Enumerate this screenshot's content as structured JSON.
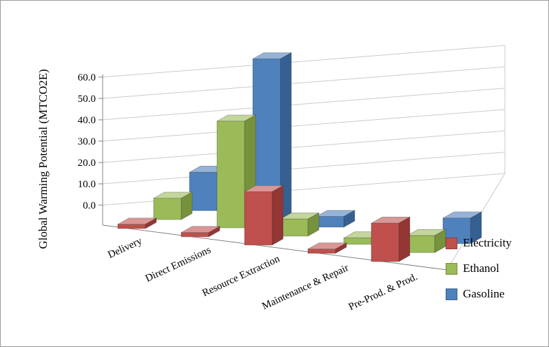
{
  "chart_data": {
    "type": "bar",
    "subtype": "3d-column",
    "title": "",
    "ylabel": "Global Warming Potential (MTCO2E)",
    "xlabel": "",
    "categories": [
      "Delivery",
      "Direct Emissions",
      "Resource Extraction",
      "Maintenance & Repair",
      "Pre-Prod. & Prod."
    ],
    "series": [
      {
        "name": "Electricity",
        "color": "#C0504D",
        "color_top": "#D99694",
        "color_side": "#943634",
        "values": [
          2,
          2,
          25,
          2,
          18
        ]
      },
      {
        "name": "Ethanol",
        "color": "#9BBB59",
        "color_top": "#C3D69B",
        "color_side": "#76923C",
        "values": [
          10,
          50,
          8,
          3,
          8
        ]
      },
      {
        "name": "Gasoline",
        "color": "#4F81BD",
        "color_top": "#95B3D7",
        "color_side": "#366092",
        "values": [
          18,
          75,
          5,
          0,
          12
        ]
      }
    ],
    "y_axis": {
      "min": 0,
      "max": 60,
      "step": 10,
      "tick_labels": [
        "0.0",
        "10.0",
        "20.0",
        "30.0",
        "40.0",
        "50.0",
        "60.0"
      ]
    },
    "legend": {
      "position": "bottom-right",
      "entries": [
        "Electricity",
        "Ethanol",
        "Gasoline"
      ]
    },
    "grid": true,
    "colors": {
      "gridline": "#C9C9C9",
      "axis": "#808080",
      "background": "#FFFFFF"
    }
  }
}
